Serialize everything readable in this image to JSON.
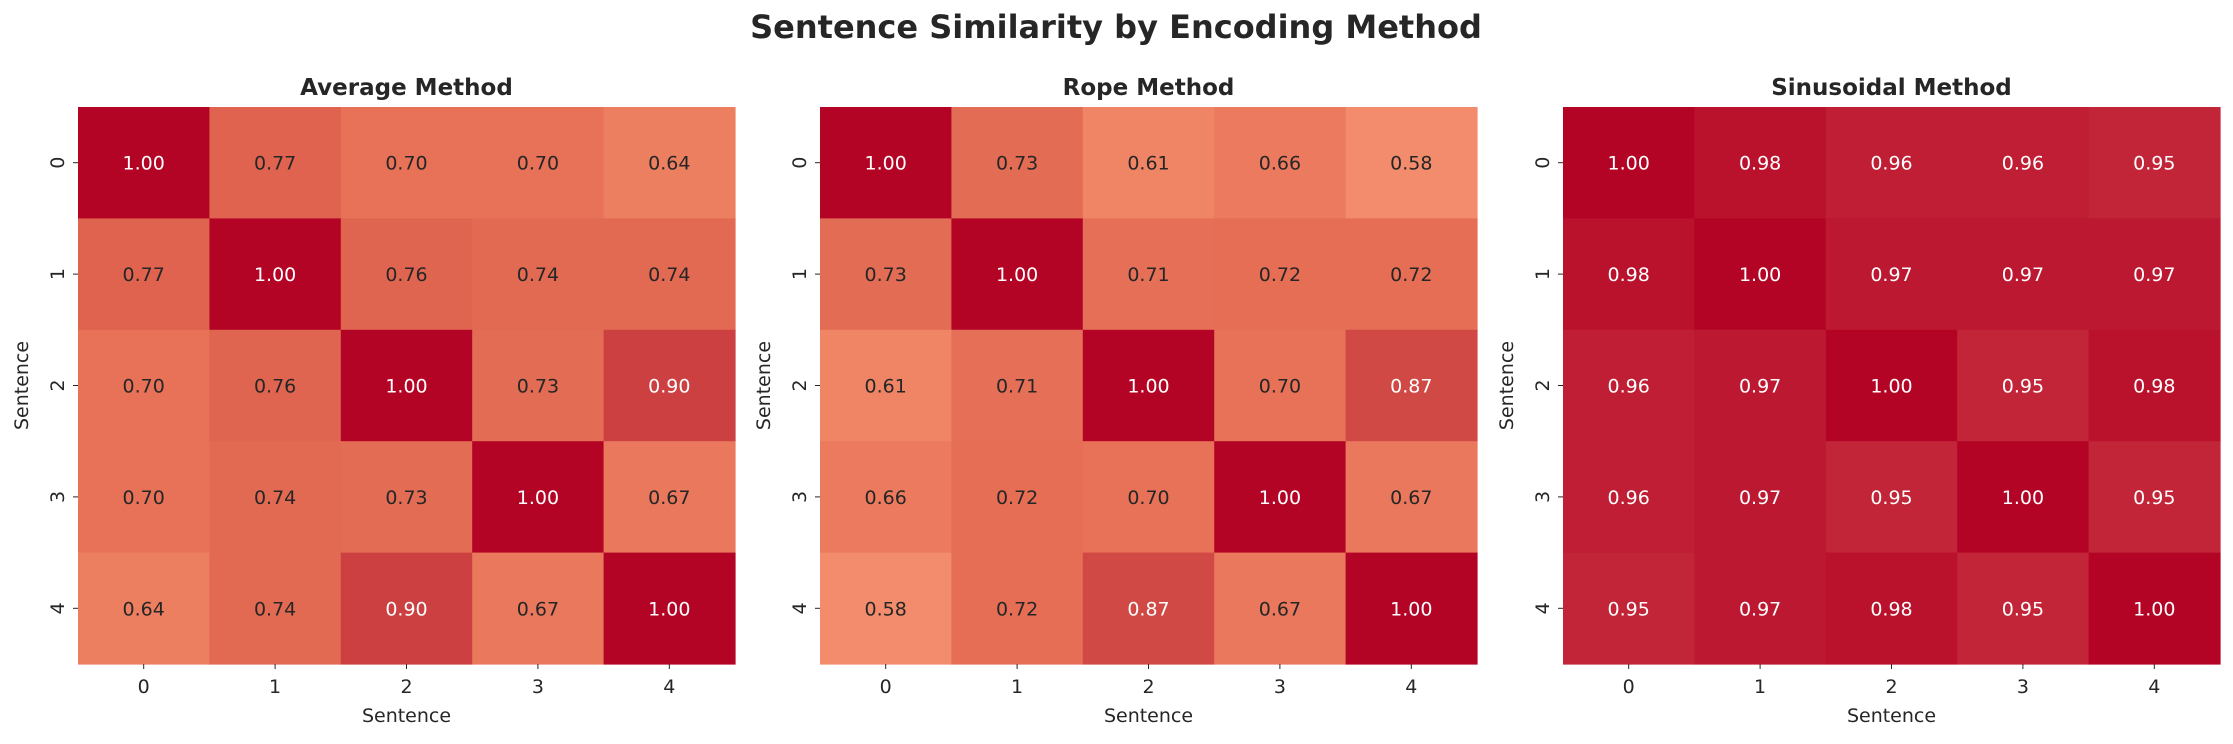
{
  "chart_data": {
    "type": "heatmap",
    "title": "Sentence Similarity by Encoding Method",
    "colormap": "coolwarm",
    "value_range": [
      -1,
      1
    ],
    "grid": false,
    "colorbar": false,
    "panels": [
      {
        "title": "Average Method",
        "xlabel": "Sentence",
        "ylabel": "Sentence",
        "x_ticks": [
          "0",
          "1",
          "2",
          "3",
          "4"
        ],
        "y_ticks": [
          "0",
          "1",
          "2",
          "3",
          "4"
        ],
        "matrix": [
          [
            1.0,
            0.77,
            0.7,
            0.7,
            0.64
          ],
          [
            0.77,
            1.0,
            0.76,
            0.74,
            0.74
          ],
          [
            0.7,
            0.76,
            1.0,
            0.73,
            0.9
          ],
          [
            0.7,
            0.74,
            0.73,
            1.0,
            0.67
          ],
          [
            0.64,
            0.74,
            0.9,
            0.67,
            1.0
          ]
        ],
        "cell_labels": [
          [
            "1.00",
            "0.77",
            "0.70",
            "0.70",
            "0.64"
          ],
          [
            "0.77",
            "1.00",
            "0.76",
            "0.74",
            "0.74"
          ],
          [
            "0.70",
            "0.76",
            "1.00",
            "0.73",
            "0.90"
          ],
          [
            "0.70",
            "0.74",
            "0.73",
            "1.00",
            "0.67"
          ],
          [
            "0.64",
            "0.74",
            "0.90",
            "0.67",
            "1.00"
          ]
        ]
      },
      {
        "title": "Rope Method",
        "xlabel": "Sentence",
        "ylabel": "Sentence",
        "x_ticks": [
          "0",
          "1",
          "2",
          "3",
          "4"
        ],
        "y_ticks": [
          "0",
          "1",
          "2",
          "3",
          "4"
        ],
        "matrix": [
          [
            1.0,
            0.73,
            0.61,
            0.66,
            0.58
          ],
          [
            0.73,
            1.0,
            0.71,
            0.72,
            0.72
          ],
          [
            0.61,
            0.71,
            1.0,
            0.7,
            0.87
          ],
          [
            0.66,
            0.72,
            0.7,
            1.0,
            0.67
          ],
          [
            0.58,
            0.72,
            0.87,
            0.67,
            1.0
          ]
        ],
        "cell_labels": [
          [
            "1.00",
            "0.73",
            "0.61",
            "0.66",
            "0.58"
          ],
          [
            "0.73",
            "1.00",
            "0.71",
            "0.72",
            "0.72"
          ],
          [
            "0.61",
            "0.71",
            "1.00",
            "0.70",
            "0.87"
          ],
          [
            "0.66",
            "0.72",
            "0.70",
            "1.00",
            "0.67"
          ],
          [
            "0.58",
            "0.72",
            "0.87",
            "0.67",
            "1.00"
          ]
        ]
      },
      {
        "title": "Sinusoidal Method",
        "xlabel": "Sentence",
        "ylabel": "Sentence",
        "x_ticks": [
          "0",
          "1",
          "2",
          "3",
          "4"
        ],
        "y_ticks": [
          "0",
          "1",
          "2",
          "3",
          "4"
        ],
        "matrix": [
          [
            1.0,
            0.98,
            0.96,
            0.96,
            0.95
          ],
          [
            0.98,
            1.0,
            0.97,
            0.97,
            0.97
          ],
          [
            0.96,
            0.97,
            1.0,
            0.95,
            0.98
          ],
          [
            0.96,
            0.97,
            0.95,
            1.0,
            0.95
          ],
          [
            0.95,
            0.97,
            0.98,
            0.95,
            1.0
          ]
        ],
        "cell_labels": [
          [
            "1.00",
            "0.98",
            "0.96",
            "0.96",
            "0.95"
          ],
          [
            "0.98",
            "1.00",
            "0.97",
            "0.97",
            "0.97"
          ],
          [
            "0.96",
            "0.97",
            "1.00",
            "0.95",
            "0.98"
          ],
          [
            "0.96",
            "0.97",
            "0.95",
            "1.00",
            "0.95"
          ],
          [
            "0.95",
            "0.97",
            "0.98",
            "0.95",
            "1.00"
          ]
        ]
      }
    ]
  }
}
